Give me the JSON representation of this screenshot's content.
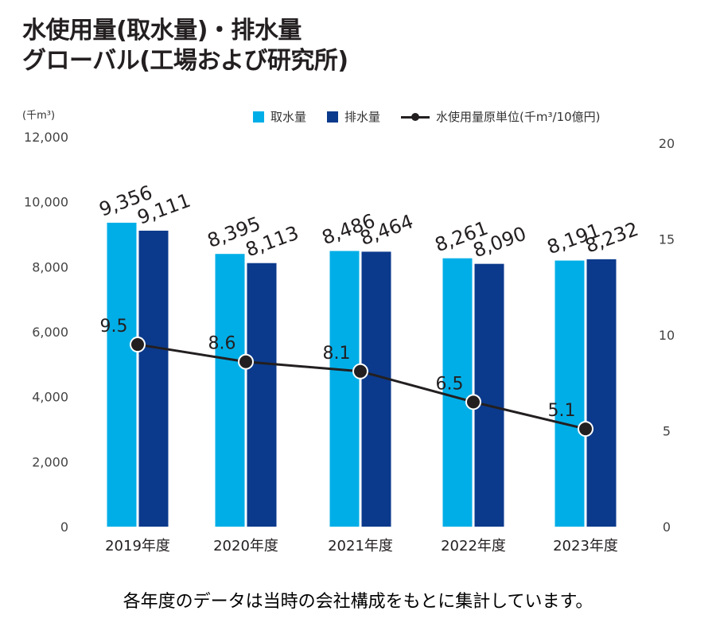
{
  "title": {
    "line1": "水使用量(取水量)・排水量",
    "line2": "グローバル(工場および研究所)"
  },
  "footnote": "各年度のデータは当時の会社構成をもとに集計しています。",
  "colors": {
    "intake": "#00aee7",
    "discharge": "#0b3a8c",
    "line": "#231f20"
  },
  "chart_data": {
    "type": "bar",
    "title": "水使用量(取水量)・排水量 グローバル(工場および研究所)",
    "categories": [
      "2019年度",
      "2020年度",
      "2021年度",
      "2022年度",
      "2023年度"
    ],
    "ylabel": "(千m³)",
    "ylim": [
      0,
      12000
    ],
    "yticks": [
      0,
      2000,
      4000,
      6000,
      8000,
      10000,
      12000
    ],
    "ytick_labels": [
      "0",
      "2,000",
      "4,000",
      "6,000",
      "8,000",
      "10,000",
      "12,000"
    ],
    "y2label": "水使用量原単位(千m³/10億円)",
    "y2lim": [
      0,
      20
    ],
    "y2ticks": [
      0,
      5,
      10,
      15,
      20
    ],
    "y2tick_labels": [
      "0",
      "5",
      "10",
      "15",
      "20"
    ],
    "grid": false,
    "legend_position": "top-right",
    "series": [
      {
        "name": "取水量",
        "type": "bar",
        "axis": "left",
        "values": [
          9356,
          8395,
          8486,
          8261,
          8191
        ],
        "labels": [
          "9,356",
          "8,395",
          "8,486",
          "8,261",
          "8,191"
        ]
      },
      {
        "name": "排水量",
        "type": "bar",
        "axis": "left",
        "values": [
          9111,
          8113,
          8464,
          8090,
          8232
        ],
        "labels": [
          "9,111",
          "8,113",
          "8,464",
          "8,090",
          "8,232"
        ]
      },
      {
        "name": "水使用量原単位(千m³/10億円)",
        "type": "line",
        "axis": "right",
        "values": [
          9.5,
          8.6,
          8.1,
          6.5,
          5.1
        ],
        "labels": [
          "9.5",
          "8.6",
          "8.1",
          "6.5",
          "5.1"
        ]
      }
    ]
  }
}
